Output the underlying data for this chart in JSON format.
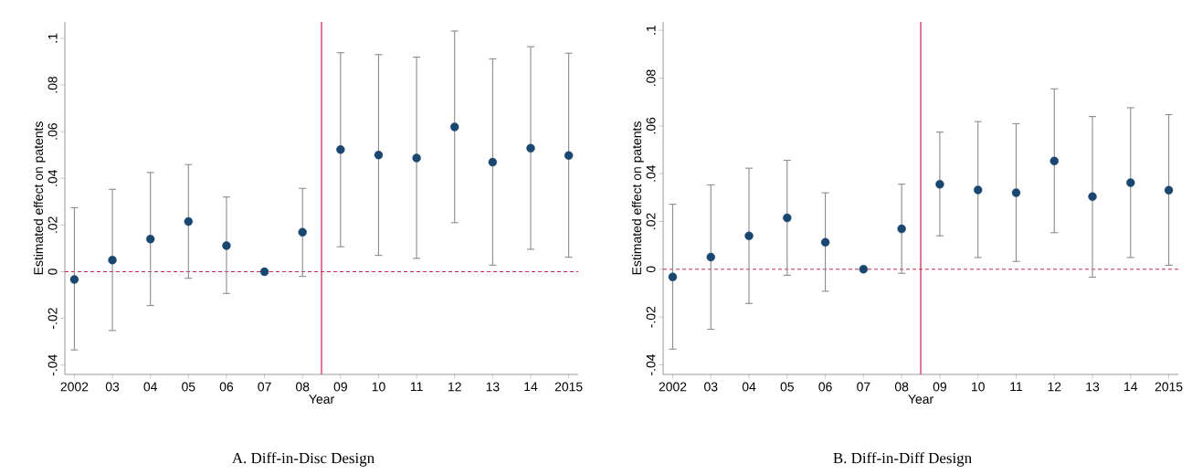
{
  "chart_data": [
    {
      "type": "scatter",
      "title": "A. Diff-in-Disc Design",
      "xlabel": "Year",
      "ylabel": "Estimated effect on patents",
      "x": [
        2002,
        2003,
        2004,
        2005,
        2006,
        2007,
        2008,
        2009,
        2010,
        2011,
        2012,
        2013,
        2014,
        2015
      ],
      "xlim": [
        2001.75,
        2015.25
      ],
      "xticks": [
        2002,
        {
          "value": 2003,
          "label": "03"
        },
        {
          "value": 2004,
          "label": "04"
        },
        {
          "value": 2005,
          "label": "05"
        },
        {
          "value": 2006,
          "label": "06"
        },
        {
          "value": 2007,
          "label": "07"
        },
        {
          "value": 2008,
          "label": "08"
        },
        {
          "value": 2009,
          "label": "09"
        },
        {
          "value": 2010,
          "label": "10"
        },
        {
          "value": 2011,
          "label": "11"
        },
        {
          "value": 2012,
          "label": "12"
        },
        {
          "value": 2013,
          "label": "13"
        },
        {
          "value": 2014,
          "label": "14"
        },
        2015
      ],
      "series": [
        {
          "color": "#1a476f",
          "values": [
            -0.0033,
            0.005,
            0.014,
            0.0215,
            0.0112,
            0,
            0.0169,
            0.0523,
            0.05,
            0.0487,
            0.062,
            0.0469,
            0.0529,
            0.0498
          ],
          "errors": [
            [
              -0.0335,
              0.0274
            ],
            [
              -0.0252,
              0.0353
            ],
            [
              -0.0145,
              0.0425
            ],
            [
              -0.0028,
              0.0459
            ],
            [
              -0.0093,
              0.032
            ],
            null,
            [
              -0.002,
              0.0357
            ],
            [
              0.0107,
              0.0938
            ],
            [
              0.007,
              0.093
            ],
            [
              0.0057,
              0.0919
            ],
            [
              0.021,
              0.1031
            ],
            [
              0.0028,
              0.0912
            ],
            [
              0.0096,
              0.0964
            ],
            [
              0.0062,
              0.0936
            ]
          ]
        }
      ],
      "marker": "circle",
      "ylim": [
        -0.044,
        0.107
      ],
      "yticks": [
        {
          "value": -0.04,
          "label": "-.04"
        },
        {
          "value": -0.02,
          "label": "-.02"
        },
        0,
        {
          "value": 0.02,
          "label": ".02"
        },
        {
          "value": 0.04,
          "label": ".04"
        },
        {
          "value": 0.06,
          "label": ".06"
        },
        {
          "value": 0.08,
          "label": ".08"
        },
        {
          "value": 0.1,
          "label": ".1"
        }
      ],
      "ref_lines": [
        {
          "axis": "x",
          "value": 2008.5,
          "color": "#c8254e",
          "line_style": "solid"
        },
        {
          "axis": "y",
          "value": 0,
          "color": "#c8254e",
          "line_style": "dashed"
        }
      ],
      "grid": false,
      "legend": false
    },
    {
      "type": "scatter",
      "title": "B. Diff-in-Diff Design",
      "xlabel": "Year",
      "ylabel": "Estimated effect on patents",
      "x": [
        2002,
        2003,
        2004,
        2005,
        2006,
        2007,
        2008,
        2009,
        2010,
        2011,
        2012,
        2013,
        2014,
        2015
      ],
      "xlim": [
        2001.75,
        2015.25
      ],
      "xticks": [
        2002,
        {
          "value": 2003,
          "label": "03"
        },
        {
          "value": 2004,
          "label": "04"
        },
        {
          "value": 2005,
          "label": "05"
        },
        {
          "value": 2006,
          "label": "06"
        },
        {
          "value": 2007,
          "label": "07"
        },
        {
          "value": 2008,
          "label": "08"
        },
        {
          "value": 2009,
          "label": "09"
        },
        {
          "value": 2010,
          "label": "10"
        },
        {
          "value": 2011,
          "label": "11"
        },
        {
          "value": 2012,
          "label": "12"
        },
        {
          "value": 2013,
          "label": "13"
        },
        {
          "value": 2014,
          "label": "14"
        },
        2015
      ],
      "series": [
        {
          "color": "#1a476f",
          "values": [
            -0.0032,
            0.0051,
            0.014,
            0.0215,
            0.0113,
            0,
            0.0169,
            0.0356,
            0.0332,
            0.032,
            0.0453,
            0.0304,
            0.0362,
            0.0331
          ],
          "errors": [
            [
              -0.0334,
              0.0272
            ],
            [
              -0.0251,
              0.0353
            ],
            [
              -0.0143,
              0.0423
            ],
            [
              -0.0025,
              0.0456
            ],
            [
              -0.0092,
              0.032
            ],
            null,
            [
              -0.0017,
              0.0356
            ],
            [
              0.014,
              0.0574
            ],
            [
              0.0049,
              0.0618
            ],
            [
              0.0033,
              0.0609
            ],
            [
              0.0153,
              0.0755
            ],
            [
              -0.0033,
              0.0639
            ],
            [
              0.0049,
              0.0676
            ],
            [
              0.0017,
              0.0647
            ]
          ]
        }
      ],
      "marker": "circle",
      "ylim": [
        -0.044,
        0.1035
      ],
      "yticks": [
        {
          "value": -0.04,
          "label": "-.04"
        },
        {
          "value": -0.02,
          "label": "-.02"
        },
        0,
        {
          "value": 0.02,
          "label": ".02"
        },
        {
          "value": 0.04,
          "label": ".04"
        },
        {
          "value": 0.06,
          "label": ".06"
        },
        {
          "value": 0.08,
          "label": ".08"
        },
        {
          "value": 0.1,
          "label": ".1"
        }
      ],
      "ref_lines": [
        {
          "axis": "x",
          "value": 2008.5,
          "color": "#c8254e",
          "line_style": "solid"
        },
        {
          "axis": "y",
          "value": 0,
          "color": "#c8254e",
          "line_style": "dashed"
        }
      ],
      "grid": false,
      "legend": false
    }
  ]
}
